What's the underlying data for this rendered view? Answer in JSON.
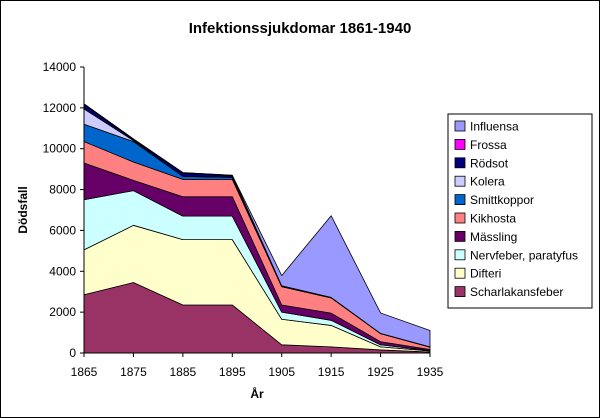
{
  "chart_data": {
    "type": "area",
    "stacked": true,
    "title": "Infektionssjukdomar 1861-1940",
    "xlabel": "År",
    "ylabel": "Dödsfall",
    "x": [
      1865,
      1875,
      1885,
      1895,
      1905,
      1915,
      1925,
      1935
    ],
    "ylim": [
      0,
      14000
    ],
    "yticks": [
      0,
      2000,
      4000,
      6000,
      8000,
      10000,
      12000,
      14000
    ],
    "grid": false,
    "legend_position": "right",
    "legend_order": [
      "Influensa",
      "Frossa",
      "Rödsot",
      "Kolera",
      "Smittkoppor",
      "Kikhosta",
      "Mässling",
      "Nervfeber, paratyfus",
      "Difteri",
      "Scharlakansfeber"
    ],
    "series": [
      {
        "name": "Scharlakansfeber",
        "color": "#993366",
        "values": [
          2850,
          3450,
          2350,
          2350,
          400,
          300,
          150,
          50
        ]
      },
      {
        "name": "Difteri",
        "color": "#FFFFCC",
        "values": [
          2200,
          2800,
          3200,
          3200,
          1250,
          1050,
          150,
          50
        ]
      },
      {
        "name": "Nervfeber, paratyfus",
        "color": "#CCFFFF",
        "values": [
          2450,
          1700,
          1150,
          1150,
          350,
          250,
          100,
          20
        ]
      },
      {
        "name": "Mässling",
        "color": "#660066",
        "values": [
          1800,
          500,
          950,
          950,
          350,
          350,
          150,
          50
        ]
      },
      {
        "name": "Kikhosta",
        "color": "#FF8080",
        "values": [
          1050,
          900,
          850,
          850,
          900,
          750,
          400,
          120
        ]
      },
      {
        "name": "Smittkoppor",
        "color": "#0066CC",
        "values": [
          850,
          1000,
          150,
          100,
          0,
          0,
          0,
          0
        ]
      },
      {
        "name": "Kolera",
        "color": "#CCCCFF",
        "values": [
          750,
          50,
          0,
          0,
          0,
          0,
          0,
          0
        ]
      },
      {
        "name": "Rödsot",
        "color": "#000080",
        "values": [
          200,
          50,
          150,
          80,
          30,
          20,
          10,
          10
        ]
      },
      {
        "name": "Frossa",
        "color": "#FF00FF",
        "values": [
          50,
          30,
          30,
          20,
          10,
          0,
          0,
          0
        ]
      },
      {
        "name": "Influensa",
        "color": "#9999FF",
        "values": [
          0,
          0,
          0,
          0,
          500,
          4000,
          1000,
          800
        ]
      }
    ]
  }
}
